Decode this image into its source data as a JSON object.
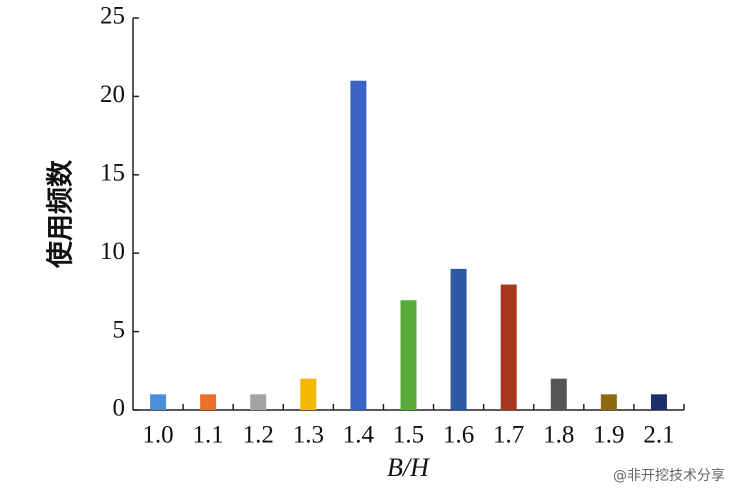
{
  "chart_data": {
    "type": "bar",
    "y_label": "使用频数",
    "x_label": "B/H",
    "categories": [
      "1.0",
      "1.1",
      "1.2",
      "1.3",
      "1.4",
      "1.5",
      "1.6",
      "1.7",
      "1.8",
      "1.9",
      "2.1"
    ],
    "values": [
      1,
      1,
      1,
      2,
      21,
      7,
      9,
      8,
      2,
      1,
      1
    ],
    "colors": [
      "#4a8fd8",
      "#e8702a",
      "#a3a3a3",
      "#f5b800",
      "#3b63c6",
      "#5aab3a",
      "#2b5aa2",
      "#a5381c",
      "#555555",
      "#8a6a12",
      "#1f2f6c"
    ],
    "ylim": [
      0,
      25
    ],
    "yticks": [
      0,
      5,
      10,
      15,
      20,
      25
    ],
    "watermark": "@非开挖技术分享"
  }
}
